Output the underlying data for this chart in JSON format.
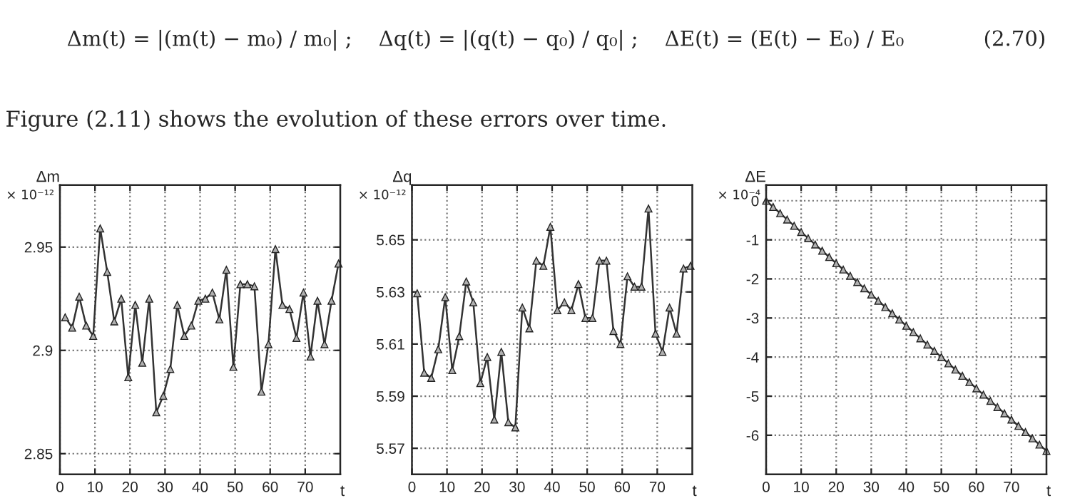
{
  "chart_data": [
    {
      "type": "other",
      "title": "Δm(t) = |(m(t) − m₀) / m₀| ;    Δq(t) = |(q(t) − q₀) / q₀| ;    ΔE(t) = (E(t) − E₀) / E₀            (2.70)",
      "annotations": [
        "Figure (2.11) shows the evolution of these errors over time."
      ]
    },
    {
      "type": "line",
      "xlabel": "t",
      "ylabel": "Δm",
      "annotations": [
        "× 10⁻¹²"
      ],
      "x": [
        1.5,
        3.5,
        5.5,
        7.5,
        9.5,
        11.5,
        13.5,
        15.5,
        17.5,
        19.5,
        21.5,
        23.5,
        25.5,
        27.5,
        29.5,
        31.5,
        33.5,
        35.5,
        37.5,
        39.5,
        41.5,
        43.5,
        45.5,
        47.5,
        49.5,
        51.5,
        53.5,
        55.5,
        57.5,
        59.5,
        61.5,
        63.5,
        65.5,
        67.5,
        69.5,
        71.5,
        73.5,
        75.5,
        77.5,
        79.5
      ],
      "series": [
        {
          "color": "#333333",
          "values": [
            2.916,
            2.911,
            2.926,
            2.912,
            2.907,
            2.959,
            2.938,
            2.914,
            2.925,
            2.887,
            2.922,
            2.894,
            2.925,
            2.87,
            2.878,
            2.891,
            2.922,
            2.907,
            2.912,
            2.924,
            2.925,
            2.928,
            2.915,
            2.939,
            2.892,
            2.932,
            2.932,
            2.931,
            2.88,
            2.903,
            2.949,
            2.922,
            2.92,
            2.906,
            2.928,
            2.897,
            2.924,
            2.903,
            2.924,
            2.942
          ]
        }
      ],
      "marker": "triangle",
      "grid": true,
      "xlim": [
        0,
        80
      ],
      "ylim": [
        2.84,
        2.98
      ],
      "xticks": [
        0,
        10,
        20,
        30,
        40,
        50,
        60,
        70
      ],
      "yticks": [
        2.85,
        2.9,
        2.95
      ]
    },
    {
      "type": "line",
      "xlabel": "t",
      "ylabel": "Δq",
      "annotations": [
        "× 10⁻¹²"
      ],
      "x": [
        1.5,
        3.5,
        5.5,
        7.5,
        9.5,
        11.5,
        13.5,
        15.5,
        17.5,
        19.5,
        21.5,
        23.5,
        25.5,
        27.5,
        29.5,
        31.5,
        33.5,
        35.5,
        37.5,
        39.5,
        41.5,
        43.5,
        45.5,
        47.5,
        49.5,
        51.5,
        53.5,
        55.5,
        57.5,
        59.5,
        61.5,
        63.5,
        65.5,
        67.5,
        69.5,
        71.5,
        73.5,
        75.5,
        77.5,
        79.5
      ],
      "series": [
        {
          "color": "#333333",
          "values": [
            5.6295,
            5.599,
            5.597,
            5.608,
            5.628,
            5.6,
            5.613,
            5.634,
            5.626,
            5.595,
            5.605,
            5.581,
            5.607,
            5.58,
            5.578,
            5.624,
            5.616,
            5.642,
            5.64,
            5.655,
            5.623,
            5.626,
            5.623,
            5.633,
            5.62,
            5.62,
            5.642,
            5.642,
            5.615,
            5.61,
            5.636,
            5.632,
            5.632,
            5.662,
            5.614,
            5.607,
            5.624,
            5.614,
            5.639,
            5.64
          ]
        }
      ],
      "marker": "triangle",
      "grid": true,
      "xlim": [
        0,
        80
      ],
      "ylim": [
        5.56,
        5.671
      ],
      "xticks": [
        0,
        10,
        20,
        30,
        40,
        50,
        60,
        70
      ],
      "yticks": [
        5.57,
        5.59,
        5.61,
        5.63,
        5.65
      ]
    },
    {
      "type": "line",
      "xlabel": "t",
      "ylabel": "ΔE",
      "annotations": [
        "× 10⁻⁴"
      ],
      "x": [
        0,
        2,
        4,
        6,
        8,
        10,
        12,
        14,
        16,
        18,
        20,
        22,
        24,
        26,
        28,
        30,
        32,
        34,
        36,
        38,
        40,
        42,
        44,
        46,
        48,
        50,
        52,
        54,
        56,
        58,
        60,
        62,
        64,
        66,
        68,
        70,
        72,
        74,
        76,
        78,
        80
      ],
      "series": [
        {
          "color": "#333333",
          "values": [
            0,
            -0.16,
            -0.32,
            -0.48,
            -0.64,
            -0.8,
            -0.96,
            -1.12,
            -1.28,
            -1.44,
            -1.6,
            -1.76,
            -1.92,
            -2.08,
            -2.24,
            -2.4,
            -2.56,
            -2.72,
            -2.88,
            -3.04,
            -3.2,
            -3.36,
            -3.52,
            -3.68,
            -3.84,
            -4.0,
            -4.16,
            -4.32,
            -4.48,
            -4.64,
            -4.8,
            -4.96,
            -5.12,
            -5.28,
            -5.44,
            -5.6,
            -5.76,
            -5.92,
            -6.08,
            -6.24,
            -6.4
          ]
        }
      ],
      "marker": "triangle",
      "grid": true,
      "xlim": [
        0,
        80
      ],
      "ylim": [
        -7,
        0.4
      ],
      "xticks": [
        0,
        10,
        20,
        30,
        40,
        50,
        60,
        70
      ],
      "yticks": [
        0,
        -1,
        -2,
        -3,
        -4,
        -5,
        -6
      ]
    }
  ]
}
